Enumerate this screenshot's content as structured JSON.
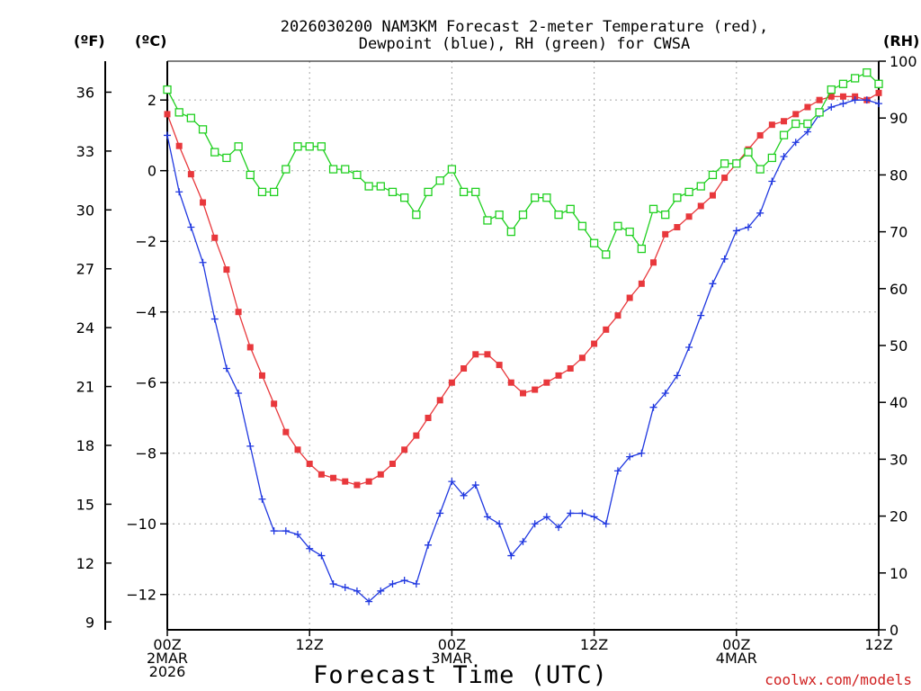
{
  "chart_data": {
    "type": "line",
    "title_line1": "2026030200 NAM3KM Forecast 2-meter Temperature (red),",
    "title_line2": "Dewpoint (blue), RH (green) for CWSA",
    "xlabel": "Forecast Time (UTC)",
    "credit": "coolwx.com/models",
    "units": {
      "fahrenheit": "(ºF)",
      "celsius": "(ºC)",
      "rh": "(RH)"
    },
    "x_range_hours": [
      0,
      60
    ],
    "x_ticks": [
      {
        "hour": 0,
        "lines": [
          "00Z",
          "2MAR",
          "2026"
        ]
      },
      {
        "hour": 12,
        "lines": [
          "12Z"
        ]
      },
      {
        "hour": 24,
        "lines": [
          "00Z",
          "3MAR"
        ]
      },
      {
        "hour": 36,
        "lines": [
          "12Z"
        ]
      },
      {
        "hour": 48,
        "lines": [
          "00Z",
          "4MAR"
        ]
      },
      {
        "hour": 60,
        "lines": [
          "12Z"
        ]
      }
    ],
    "left_c_axis": {
      "range": [
        -13.0,
        3.1
      ],
      "ticks": [
        2,
        0,
        -2,
        -4,
        -6,
        -8,
        -10,
        -12
      ],
      "labels": [
        "2",
        "0",
        "−2",
        "−4",
        "−6",
        "−8",
        "−10",
        "−12"
      ]
    },
    "left_f_axis": {
      "ticks": [
        36,
        33,
        30,
        27,
        24,
        21,
        18,
        15,
        12,
        9
      ],
      "labels": [
        "36",
        "33",
        "30",
        "27",
        "24",
        "21",
        "18",
        "15",
        "12",
        "9"
      ]
    },
    "right_rh_axis": {
      "range": [
        0,
        100
      ],
      "ticks": [
        100,
        90,
        80,
        70,
        60,
        50,
        40,
        30,
        20,
        10,
        0
      ],
      "labels": [
        "100",
        "90",
        "80",
        "70",
        "60",
        "50",
        "40",
        "30",
        "20",
        "10",
        "0"
      ]
    },
    "series": [
      {
        "name": "2-meter Temperature",
        "axis": "celsius",
        "color": "#e8383c",
        "marker": "filled-square",
        "values": [
          1.6,
          0.7,
          -0.1,
          -0.9,
          -1.9,
          -2.8,
          -4.0,
          -5.0,
          -5.8,
          -6.6,
          -7.4,
          -7.9,
          -8.3,
          -8.6,
          -8.7,
          -8.8,
          -8.9,
          -8.8,
          -8.6,
          -8.3,
          -7.9,
          -7.5,
          -7.0,
          -6.5,
          -6.0,
          -5.6,
          -5.2,
          -5.2,
          -5.5,
          -6.0,
          -6.3,
          -6.2,
          -6.0,
          -5.8,
          -5.6,
          -5.3,
          -4.9,
          -4.5,
          -4.1,
          -3.6,
          -3.2,
          -2.6,
          -1.8,
          -1.6,
          -1.3,
          -1.0,
          -0.7,
          -0.2,
          0.2,
          0.6,
          1.0,
          1.3,
          1.4,
          1.6,
          1.8,
          2.0,
          2.1,
          2.1,
          2.1,
          2.0,
          2.2
        ]
      },
      {
        "name": "Dewpoint",
        "axis": "celsius",
        "color": "#2038e0",
        "marker": "plus",
        "values": [
          1.0,
          -0.6,
          -1.6,
          -2.6,
          -4.2,
          -5.6,
          -6.3,
          -7.8,
          -9.3,
          -10.2,
          -10.2,
          -10.3,
          -10.7,
          -10.9,
          -11.7,
          -11.8,
          -11.9,
          -12.2,
          -11.9,
          -11.7,
          -11.6,
          -11.7,
          -10.6,
          -9.7,
          -8.8,
          -9.2,
          -8.9,
          -9.8,
          -10.0,
          -10.9,
          -10.5,
          -10.0,
          -9.8,
          -10.1,
          -9.7,
          -9.7,
          -9.8,
          -10.0,
          -8.5,
          -8.1,
          -8.0,
          -6.7,
          -6.3,
          -5.8,
          -5.0,
          -4.1,
          -3.2,
          -2.5,
          -1.7,
          -1.6,
          -1.2,
          -0.3,
          0.4,
          0.8,
          1.1,
          1.6,
          1.8,
          1.9,
          2.0,
          2.0,
          1.9
        ]
      },
      {
        "name": "RH",
        "axis": "rh",
        "color": "#20d020",
        "marker": "open-square",
        "values": [
          95,
          91,
          90,
          88,
          84,
          83,
          85,
          80,
          77,
          77,
          81,
          85,
          85,
          85,
          81,
          81,
          80,
          78,
          78,
          77,
          76,
          73,
          77,
          79,
          81,
          77,
          77,
          72,
          73,
          70,
          73,
          76,
          76,
          73,
          74,
          71,
          68,
          66,
          71,
          70,
          67,
          74,
          73,
          76,
          77,
          78,
          80,
          82,
          82,
          84,
          81,
          83,
          87,
          89,
          89,
          91,
          95,
          96,
          97,
          98,
          96
        ]
      }
    ]
  }
}
